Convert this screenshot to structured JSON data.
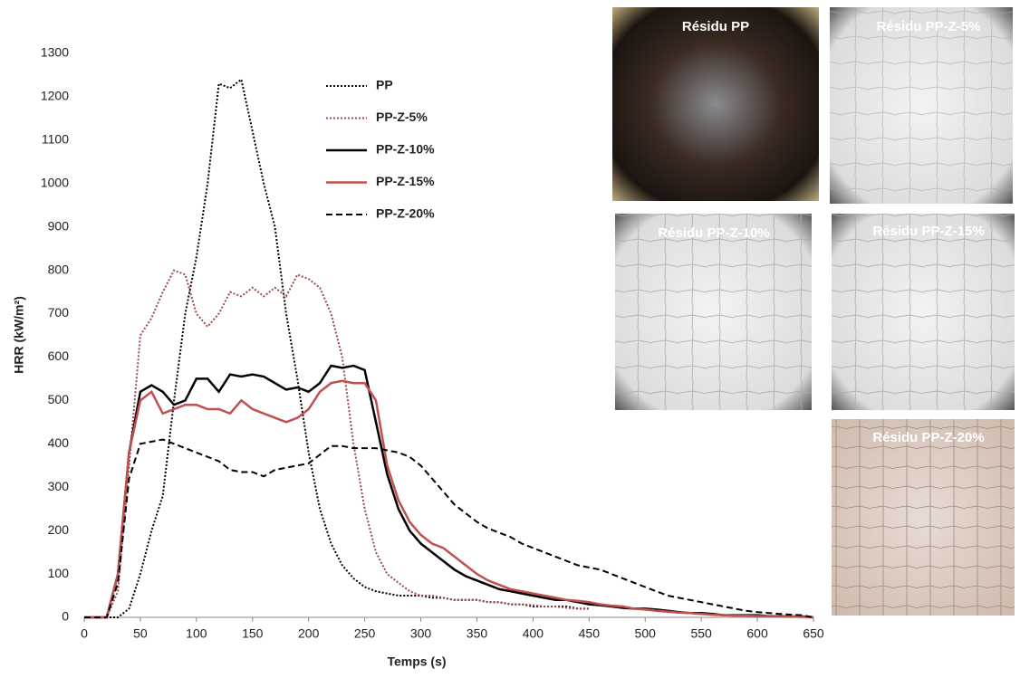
{
  "chart_data": {
    "type": "line",
    "xlabel": "Temps (s)",
    "ylabel": "HRR (kW/m²)",
    "xlim": [
      0,
      650
    ],
    "ylim": [
      0,
      1300
    ],
    "xticks": [
      0,
      50,
      100,
      150,
      200,
      250,
      300,
      350,
      400,
      450,
      500,
      550,
      600,
      650
    ],
    "yticks": [
      0,
      100,
      200,
      300,
      400,
      500,
      600,
      700,
      800,
      900,
      1000,
      1100,
      1200,
      1300
    ],
    "grid": false,
    "x": [
      0,
      10,
      20,
      30,
      40,
      50,
      60,
      70,
      80,
      90,
      100,
      110,
      120,
      130,
      140,
      150,
      160,
      170,
      180,
      190,
      200,
      210,
      220,
      230,
      240,
      250,
      260,
      270,
      280,
      290,
      300,
      310,
      320,
      330,
      340,
      350,
      360,
      370,
      380,
      390,
      400,
      410,
      420,
      430,
      440,
      450,
      460,
      470,
      480,
      490,
      500,
      510,
      520,
      530,
      540,
      550,
      560,
      570,
      580,
      590,
      600,
      610,
      620,
      630,
      640,
      650
    ],
    "series": [
      {
        "name": "PP",
        "color": "#000000",
        "dash": "dotted",
        "values": [
          0,
          0,
          0,
          0,
          20,
          100,
          200,
          280,
          500,
          700,
          830,
          1000,
          1230,
          1220,
          1240,
          1120,
          1000,
          900,
          700,
          550,
          380,
          250,
          170,
          120,
          90,
          70,
          60,
          55,
          50,
          50,
          50,
          45,
          45,
          40,
          40,
          40,
          35,
          35,
          30,
          30,
          25,
          25,
          25,
          25,
          20,
          20,
          null,
          null,
          null,
          null,
          null,
          null,
          null,
          null,
          null,
          null,
          null,
          null,
          null,
          null,
          null,
          null,
          null,
          null,
          null,
          null
        ]
      },
      {
        "name": "PP-Z-5%",
        "color": "#a0484a",
        "dash": "dotted",
        "values": [
          0,
          0,
          0,
          60,
          350,
          650,
          690,
          750,
          800,
          790,
          700,
          670,
          700,
          750,
          740,
          760,
          740,
          760,
          740,
          790,
          780,
          760,
          700,
          600,
          400,
          250,
          150,
          100,
          80,
          60,
          50,
          50,
          45,
          40,
          40,
          40,
          35,
          35,
          30,
          30,
          28,
          25,
          25,
          22,
          20,
          20,
          null,
          null,
          null,
          null,
          null,
          null,
          null,
          null,
          null,
          null,
          null,
          null,
          null,
          null,
          null,
          null,
          null,
          null,
          null,
          null
        ]
      },
      {
        "name": "PP-Z-10%",
        "color": "#000000",
        "dash": "solid",
        "values": [
          0,
          0,
          0,
          100,
          380,
          520,
          535,
          520,
          490,
          500,
          550,
          550,
          520,
          560,
          555,
          560,
          555,
          540,
          525,
          530,
          520,
          540,
          580,
          575,
          580,
          570,
          450,
          330,
          250,
          200,
          170,
          150,
          130,
          110,
          95,
          85,
          75,
          65,
          60,
          55,
          50,
          45,
          40,
          40,
          35,
          30,
          28,
          25,
          22,
          20,
          20,
          18,
          15,
          12,
          10,
          10,
          8,
          5,
          5,
          5,
          5,
          3,
          3,
          2,
          2,
          0
        ]
      },
      {
        "name": "PP-Z-15%",
        "color": "#c0504d",
        "dash": "solid",
        "values": [
          0,
          0,
          0,
          100,
          380,
          500,
          520,
          470,
          480,
          490,
          490,
          480,
          480,
          470,
          500,
          480,
          470,
          460,
          450,
          460,
          480,
          520,
          540,
          545,
          540,
          540,
          500,
          350,
          270,
          220,
          190,
          170,
          160,
          140,
          120,
          100,
          85,
          75,
          65,
          60,
          55,
          50,
          45,
          40,
          38,
          35,
          30,
          27,
          25,
          20,
          18,
          15,
          13,
          11,
          10,
          8,
          6,
          5,
          4,
          4,
          3,
          3,
          2,
          2,
          1,
          0
        ]
      },
      {
        "name": "PP-Z-20%",
        "color": "#000000",
        "dash": "dashed",
        "values": [
          0,
          0,
          0,
          80,
          320,
          400,
          405,
          410,
          400,
          390,
          380,
          370,
          360,
          340,
          335,
          335,
          325,
          340,
          345,
          350,
          355,
          375,
          395,
          395,
          390,
          390,
          390,
          385,
          380,
          370,
          350,
          320,
          290,
          260,
          240,
          220,
          205,
          195,
          185,
          170,
          160,
          150,
          140,
          130,
          120,
          115,
          110,
          100,
          90,
          80,
          70,
          60,
          50,
          45,
          40,
          35,
          30,
          25,
          20,
          15,
          12,
          10,
          8,
          6,
          5,
          0
        ]
      }
    ]
  },
  "photos": [
    {
      "label": "Résidu PP"
    },
    {
      "label": "Résidu PP-Z-5%"
    },
    {
      "label": "Résidu PP-Z-10%"
    },
    {
      "label": "Résidu PP-Z-15%"
    },
    {
      "label": "Résidu PP-Z-20%"
    }
  ]
}
